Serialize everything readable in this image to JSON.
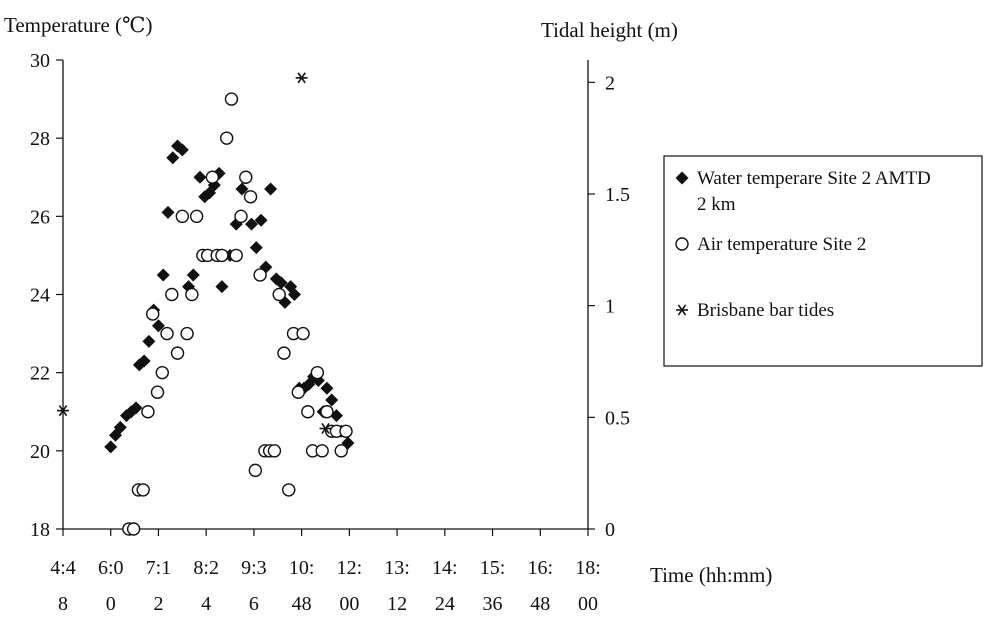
{
  "chart_data": {
    "type": "scatter",
    "title": "",
    "y_left_label": "Temperature (℃)",
    "y_right_label": "Tidal height (m)",
    "x_label": "Time (hh:mm)",
    "x_ticks": [
      {
        "x": 0,
        "line1": "4:4",
        "line2": "8"
      },
      {
        "x": 1,
        "line1": "6:0",
        "line2": "0"
      },
      {
        "x": 2,
        "line1": "7:1",
        "line2": "2"
      },
      {
        "x": 3,
        "line1": "8:2",
        "line2": "4"
      },
      {
        "x": 4,
        "line1": "9:3",
        "line2": "6"
      },
      {
        "x": 5,
        "line1": "10:",
        "line2": "48"
      },
      {
        "x": 6,
        "line1": "12:",
        "line2": "00"
      },
      {
        "x": 7,
        "line1": "13:",
        "line2": "12"
      },
      {
        "x": 8,
        "line1": "14:",
        "line2": "24"
      },
      {
        "x": 9,
        "line1": "15:",
        "line2": "36"
      },
      {
        "x": 10,
        "line1": "16:",
        "line2": "48"
      },
      {
        "x": 11,
        "line1": "18:",
        "line2": "00"
      }
    ],
    "y_left": {
      "min": 18,
      "max": 30,
      "ticks": [
        "18",
        "20",
        "22",
        "24",
        "26",
        "28",
        "30"
      ]
    },
    "y_right": {
      "min": 0,
      "max": 2.1,
      "ticks": [
        {
          "v": 0,
          "label": "0"
        },
        {
          "v": 0.5,
          "label": "0.5"
        },
        {
          "v": 1,
          "label": "1"
        },
        {
          "v": 1.5,
          "label": "1.5"
        },
        {
          "v": 2,
          "label": "2"
        }
      ]
    },
    "legend": {
      "placement": "right",
      "entries": [
        {
          "marker": "diamond",
          "line1": "Water temperare Site 2 AMTD",
          "line2": "2 km"
        },
        {
          "marker": "circle",
          "line1": "Air temperature Site 2",
          "line2": ""
        },
        {
          "marker": "star",
          "line1": "Brisbane bar tides",
          "line2": ""
        }
      ]
    },
    "series": [
      {
        "name": "Water temperare Site 2 AMTD 2 km",
        "marker": "diamond",
        "axis": "left",
        "points": [
          [
            1.0,
            20.1
          ],
          [
            1.1,
            20.4
          ],
          [
            1.2,
            20.6
          ],
          [
            1.33,
            20.9
          ],
          [
            1.43,
            21.0
          ],
          [
            1.53,
            21.1
          ],
          [
            1.6,
            22.2
          ],
          [
            1.7,
            22.3
          ],
          [
            1.8,
            22.8
          ],
          [
            1.9,
            23.6
          ],
          [
            2.0,
            23.2
          ],
          [
            2.1,
            24.5
          ],
          [
            2.2,
            26.1
          ],
          [
            2.3,
            27.5
          ],
          [
            2.4,
            27.8
          ],
          [
            2.5,
            27.7
          ],
          [
            2.63,
            24.2
          ],
          [
            2.73,
            24.5
          ],
          [
            2.87,
            27.0
          ],
          [
            2.97,
            26.5
          ],
          [
            3.07,
            26.6
          ],
          [
            3.17,
            26.8
          ],
          [
            3.27,
            27.1
          ],
          [
            3.33,
            24.2
          ],
          [
            3.5,
            25.0
          ],
          [
            3.63,
            25.8
          ],
          [
            3.75,
            26.7
          ],
          [
            3.95,
            25.8
          ],
          [
            4.05,
            25.2
          ],
          [
            4.15,
            25.9
          ],
          [
            4.25,
            24.7
          ],
          [
            4.35,
            26.7
          ],
          [
            4.47,
            24.4
          ],
          [
            4.57,
            24.3
          ],
          [
            4.65,
            23.8
          ],
          [
            4.77,
            24.2
          ],
          [
            4.85,
            24.0
          ],
          [
            4.95,
            21.6
          ],
          [
            5.05,
            21.6
          ],
          [
            5.15,
            21.7
          ],
          [
            5.25,
            21.9
          ],
          [
            5.35,
            21.8
          ],
          [
            5.45,
            21.0
          ],
          [
            5.53,
            21.6
          ],
          [
            5.63,
            21.3
          ],
          [
            5.73,
            20.9
          ],
          [
            5.83,
            20.5
          ],
          [
            5.97,
            20.2
          ]
        ]
      },
      {
        "name": "Air temperature Site 2",
        "marker": "circle",
        "axis": "left",
        "points": [
          [
            1.38,
            18.0
          ],
          [
            1.48,
            18.0
          ],
          [
            1.58,
            19.0
          ],
          [
            1.68,
            19.0
          ],
          [
            1.78,
            21.0
          ],
          [
            1.88,
            23.5
          ],
          [
            1.98,
            21.5
          ],
          [
            2.08,
            22.0
          ],
          [
            2.18,
            23.0
          ],
          [
            2.28,
            24.0
          ],
          [
            2.4,
            22.5
          ],
          [
            2.5,
            26.0
          ],
          [
            2.6,
            23.0
          ],
          [
            2.7,
            24.0
          ],
          [
            2.8,
            26.0
          ],
          [
            2.93,
            25.0
          ],
          [
            3.03,
            25.0
          ],
          [
            3.13,
            27.0
          ],
          [
            3.23,
            25.0
          ],
          [
            3.33,
            25.0
          ],
          [
            3.43,
            28.0
          ],
          [
            3.53,
            29.0
          ],
          [
            3.63,
            25.0
          ],
          [
            3.73,
            26.0
          ],
          [
            3.83,
            27.0
          ],
          [
            3.93,
            26.5
          ],
          [
            4.03,
            19.5
          ],
          [
            4.13,
            24.5
          ],
          [
            4.23,
            20.0
          ],
          [
            4.33,
            20.0
          ],
          [
            4.43,
            20.0
          ],
          [
            4.53,
            24.0
          ],
          [
            4.63,
            22.5
          ],
          [
            4.73,
            19.0
          ],
          [
            4.83,
            23.0
          ],
          [
            4.93,
            21.5
          ],
          [
            5.03,
            23.0
          ],
          [
            5.13,
            21.0
          ],
          [
            5.23,
            20.0
          ],
          [
            5.33,
            22.0
          ],
          [
            5.43,
            20.0
          ],
          [
            5.53,
            21.0
          ],
          [
            5.63,
            20.5
          ],
          [
            5.73,
            20.5
          ],
          [
            5.83,
            20.0
          ],
          [
            5.93,
            20.5
          ]
        ]
      },
      {
        "name": "Brisbane bar tides",
        "marker": "star",
        "axis": "right",
        "points": [
          [
            0.0,
            0.53
          ],
          [
            5.0,
            2.02
          ],
          [
            5.5,
            0.45
          ]
        ]
      }
    ]
  }
}
